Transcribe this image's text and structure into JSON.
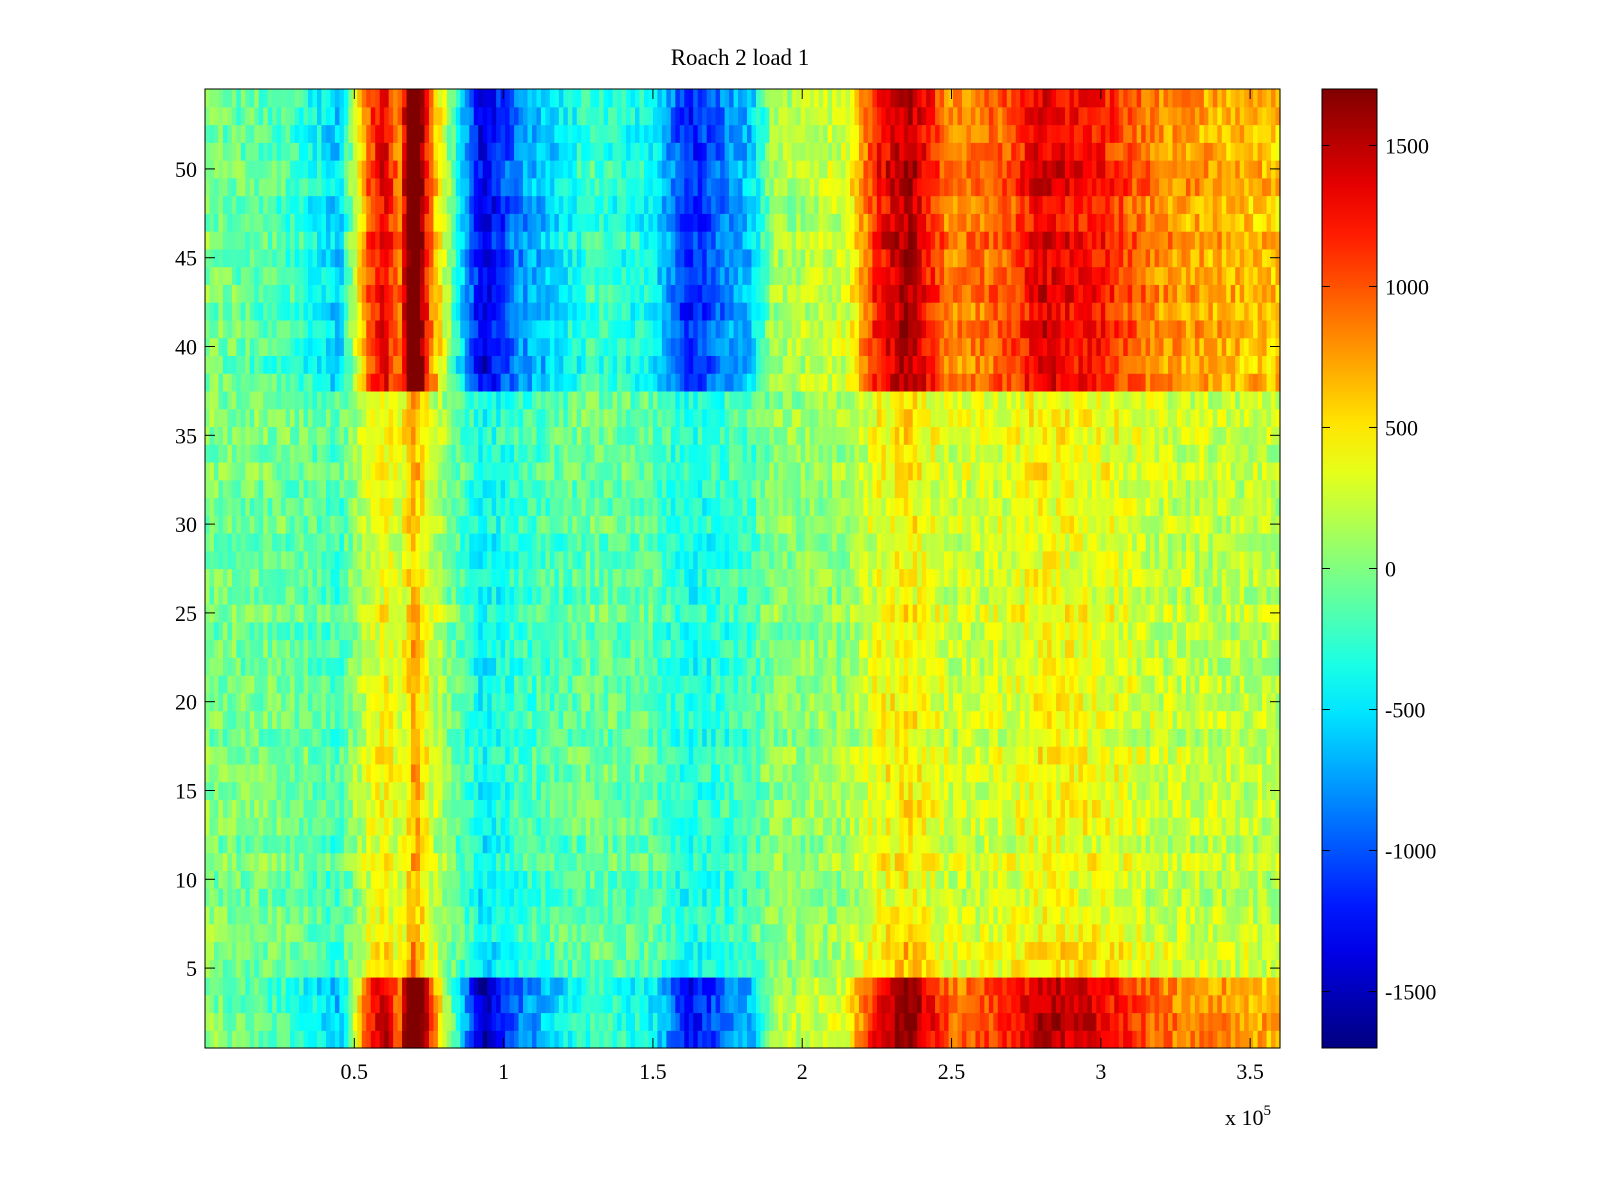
{
  "chart_data": {
    "type": "heatmap",
    "title": "Roach 2 load 1",
    "xlabel": "",
    "ylabel": "",
    "x_multiplier_label": {
      "base": "x 10",
      "exponent": "5"
    },
    "xlim": [
      0,
      3.6
    ],
    "ylim": [
      0.5,
      54.5
    ],
    "x_ticks": [
      0.5,
      1,
      1.5,
      2,
      2.5,
      3,
      3.5
    ],
    "x_tick_labels": [
      "0.5",
      "1",
      "1.5",
      "2",
      "2.5",
      "3",
      "3.5"
    ],
    "y_ticks": [
      5,
      10,
      15,
      20,
      25,
      30,
      35,
      40,
      45,
      50
    ],
    "y_tick_labels": [
      "5",
      "10",
      "15",
      "20",
      "25",
      "30",
      "35",
      "40",
      "45",
      "50"
    ],
    "rows": 54,
    "colormap": "jet",
    "color_range": [
      -1700,
      1700
    ],
    "colorbar_ticks": [
      1500,
      1000,
      500,
      0,
      -500,
      -1000,
      -1500
    ],
    "colorbar_tick_labels": [
      "1500",
      "1000",
      "500",
      "0",
      "-500",
      "-1000",
      "-1500"
    ],
    "grid": false,
    "column_profile": [
      {
        "x": 0.0,
        "value": 0
      },
      {
        "x": 0.3,
        "value": -100
      },
      {
        "x": 0.45,
        "value": -300
      },
      {
        "x": 0.55,
        "value": 500
      },
      {
        "x": 0.6,
        "value": 700
      },
      {
        "x": 0.65,
        "value": 400
      },
      {
        "x": 0.7,
        "value": 1200
      },
      {
        "x": 0.75,
        "value": 500
      },
      {
        "x": 0.85,
        "value": -200
      },
      {
        "x": 0.93,
        "value": -700
      },
      {
        "x": 1.05,
        "value": -400
      },
      {
        "x": 1.3,
        "value": -100
      },
      {
        "x": 1.5,
        "value": -200
      },
      {
        "x": 1.62,
        "value": -600
      },
      {
        "x": 1.75,
        "value": -400
      },
      {
        "x": 1.83,
        "value": -300
      },
      {
        "x": 1.9,
        "value": 50
      },
      {
        "x": 2.15,
        "value": 150
      },
      {
        "x": 2.25,
        "value": 600
      },
      {
        "x": 2.35,
        "value": 800
      },
      {
        "x": 2.5,
        "value": 400
      },
      {
        "x": 2.7,
        "value": 500
      },
      {
        "x": 2.8,
        "value": 700
      },
      {
        "x": 3.0,
        "value": 600
      },
      {
        "x": 3.2,
        "value": 400
      },
      {
        "x": 3.6,
        "value": 300
      }
    ],
    "row_bands": [
      {
        "rows": [
          1,
          4
        ],
        "gain": 2.2
      },
      {
        "rows": [
          5,
          6
        ],
        "gain": 0.8
      },
      {
        "rows": [
          7,
          9
        ],
        "gain": 0.6
      },
      {
        "rows": [
          10,
          37
        ],
        "gain": 0.6
      },
      {
        "rows": [
          38,
          54
        ],
        "gain": 2.0
      }
    ]
  }
}
